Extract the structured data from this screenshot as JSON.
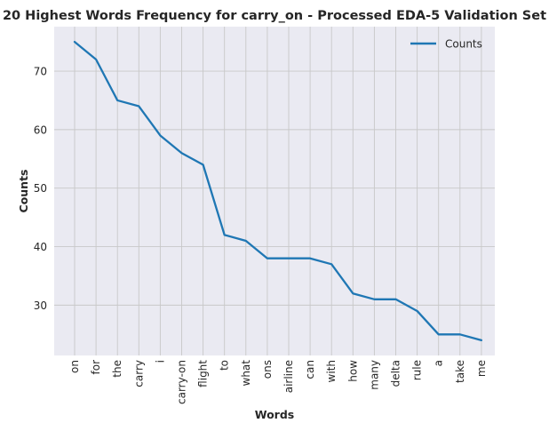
{
  "chart_data": {
    "type": "line",
    "title": "20 Highest Words Frequency for carry_on - Processed EDA-5 Validation Set",
    "xlabel": "Words",
    "ylabel": "Counts",
    "categories": [
      "on",
      "for",
      "the",
      "carry",
      "i",
      "carry-on",
      "flight",
      "to",
      "what",
      "ons",
      "airline",
      "can",
      "with",
      "how",
      "many",
      "delta",
      "rule",
      "a",
      "take",
      "me"
    ],
    "series": [
      {
        "name": "Counts",
        "color": "#1f77b4",
        "values": [
          75,
          72,
          65,
          64,
          59,
          56,
          54,
          42,
          41,
          38,
          38,
          38,
          37,
          32,
          31,
          31,
          29,
          25,
          25,
          24
        ]
      }
    ],
    "ylim": [
      21.4,
      77.6
    ],
    "yticks": [
      30,
      40,
      50,
      60,
      70
    ],
    "grid": true,
    "legend": "top-right",
    "colors": {
      "plot_background": "#eaeaf2",
      "grid": "#c8c8c8",
      "line": "#1f77b4"
    }
  }
}
